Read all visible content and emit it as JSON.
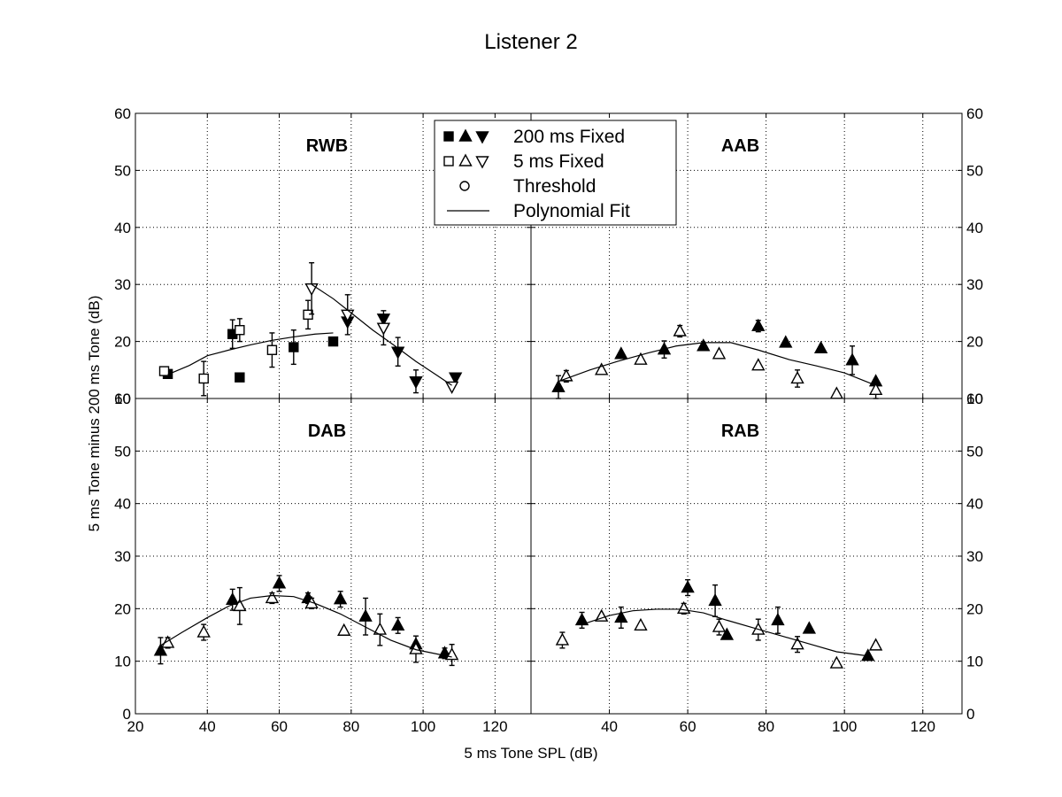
{
  "figure_title": "Listener 2",
  "x_axis_label": "5 ms Tone SPL (dB)",
  "y_axis_label": "5 ms Tone minus 200 ms Tone (dB)",
  "legend": {
    "items": [
      {
        "symbols": [
          "square-filled",
          "triangle-up-filled",
          "triangle-down-filled"
        ],
        "label": "200 ms Fixed"
      },
      {
        "symbols": [
          "square-open",
          "triangle-up-open",
          "triangle-down-open"
        ],
        "label": "5 ms Fixed"
      },
      {
        "symbols": [
          "circle-open"
        ],
        "label": "Threshold"
      },
      {
        "symbols": [
          "line"
        ],
        "label": "Polynomial  Fit"
      }
    ]
  },
  "chart_data": [
    {
      "type": "scatter",
      "panel": "top-left",
      "title": "RWB",
      "xlim": [
        20,
        130
      ],
      "ylim": [
        10,
        60
      ],
      "xticks": [
        20,
        40,
        60,
        80,
        100,
        120
      ],
      "yticks": [
        10,
        20,
        30,
        40,
        50,
        60
      ],
      "grid": true,
      "series": [
        {
          "name": "200 ms Fixed",
          "marker": "square-filled",
          "x": [
            29,
            47,
            49,
            64,
            75
          ],
          "y": [
            14.3,
            21.3,
            13.7,
            19,
            20
          ],
          "err": [
            0,
            2.5,
            0,
            3,
            0
          ]
        },
        {
          "name": "200 ms Fixed",
          "marker": "triangle-down-filled",
          "x": [
            79,
            89,
            93,
            98,
            109
          ],
          "y": [
            23.5,
            24,
            18.2,
            13,
            13.7
          ],
          "err": [
            0,
            0,
            2.5,
            2,
            0
          ]
        },
        {
          "name": "5 ms Fixed",
          "marker": "square-open",
          "x": [
            28,
            39,
            49,
            58,
            68
          ],
          "y": [
            14.8,
            13.5,
            22,
            18.5,
            24.7
          ],
          "err": [
            0,
            3,
            2,
            3,
            2.5
          ]
        },
        {
          "name": "5 ms Fixed",
          "marker": "triangle-down-open",
          "x": [
            69,
            79,
            89,
            108
          ],
          "y": [
            29.3,
            24.7,
            22.4,
            12.1
          ],
          "err": [
            4.5,
            3.5,
            3,
            0
          ]
        },
        {
          "name": "Polynomial  Fit",
          "type": "line",
          "x": [
            29,
            35,
            40,
            46,
            52,
            58,
            64,
            70,
            75
          ],
          "y": [
            14.2,
            15.8,
            17.5,
            18.5,
            19.4,
            20.2,
            20.8,
            21.3,
            21.5
          ]
        },
        {
          "name": "Polynomial  Fit",
          "type": "line",
          "x": [
            69,
            75,
            80,
            86,
            92,
            98,
            104,
            108
          ],
          "y": [
            30,
            27.5,
            25,
            22,
            19.3,
            16.5,
            14,
            12.3
          ]
        }
      ]
    },
    {
      "type": "scatter",
      "panel": "top-right",
      "title": "AAB",
      "xlim": [
        20,
        130
      ],
      "ylim": [
        10,
        60
      ],
      "xticks": [
        40,
        60,
        80,
        100,
        120
      ],
      "yticks": [
        10,
        20,
        30,
        40,
        50,
        60
      ],
      "grid": true,
      "series": [
        {
          "name": "200 ms Fixed",
          "marker": "triangle-up-filled",
          "x": [
            27,
            43,
            54,
            64,
            78,
            85,
            94,
            102,
            108
          ],
          "y": [
            12,
            17.8,
            18.6,
            19.2,
            22.7,
            19.8,
            18.8,
            16.7,
            13
          ],
          "err": [
            2,
            0,
            1.5,
            0,
            1,
            0,
            0,
            2.5,
            0
          ]
        },
        {
          "name": "5 ms Fixed",
          "marker": "triangle-up-open",
          "x": [
            29,
            38,
            48,
            58,
            68,
            78,
            88,
            98,
            108
          ],
          "y": [
            13.9,
            15,
            16.8,
            21.8,
            17.8,
            15.8,
            13.5,
            10.8,
            11.5
          ],
          "err": [
            1,
            0,
            0,
            1,
            0,
            0,
            1.5,
            0,
            1.5
          ]
        },
        {
          "name": "Polynomial  Fit",
          "type": "line",
          "x": [
            27,
            35,
            42,
            50,
            57,
            64,
            71,
            78,
            86,
            93,
            100,
            108
          ],
          "y": [
            13,
            15,
            16.5,
            18,
            19.2,
            19.8,
            19.8,
            18.5,
            16.8,
            15.7,
            14.5,
            12.3
          ]
        }
      ]
    },
    {
      "type": "scatter",
      "panel": "bottom-left",
      "title": "DAB",
      "xlim": [
        20,
        130
      ],
      "ylim": [
        0,
        60
      ],
      "xticks": [
        20,
        40,
        60,
        80,
        100,
        120
      ],
      "yticks": [
        0,
        10,
        20,
        30,
        40,
        50,
        60
      ],
      "grid": true,
      "series": [
        {
          "name": "200 ms Fixed",
          "marker": "triangle-up-filled",
          "x": [
            27,
            47,
            60,
            68,
            77,
            84,
            93,
            98,
            106
          ],
          "y": [
            12,
            21.7,
            24.8,
            22,
            21.8,
            18.5,
            16.8,
            13.2,
            11.5
          ],
          "err": [
            2.5,
            2,
            1.5,
            1,
            1.5,
            3.5,
            1.5,
            0,
            1
          ]
        },
        {
          "name": "5 ms Fixed",
          "marker": "triangle-up-open",
          "x": [
            29,
            39,
            49,
            58,
            69,
            78,
            88,
            98,
            108
          ],
          "y": [
            13.5,
            15.5,
            20.5,
            22,
            21,
            15.8,
            16,
            12.3,
            11.2
          ],
          "err": [
            1,
            1.5,
            3.5,
            1,
            1,
            0,
            3,
            2.5,
            2
          ]
        },
        {
          "name": "Polynomial  Fit",
          "type": "line",
          "x": [
            27,
            33,
            40,
            46,
            52,
            58,
            64,
            70,
            77,
            84,
            91,
            98,
            108
          ],
          "y": [
            13,
            15.5,
            18.3,
            20.5,
            22,
            22.5,
            22.3,
            21,
            19,
            16.5,
            14,
            12.2,
            10.8
          ]
        }
      ]
    },
    {
      "type": "scatter",
      "panel": "bottom-right",
      "title": "RAB",
      "xlim": [
        20,
        130
      ],
      "ylim": [
        0,
        60
      ],
      "xticks": [
        40,
        60,
        80,
        100,
        120
      ],
      "yticks": [
        0,
        10,
        20,
        30,
        40,
        50,
        60
      ],
      "grid": true,
      "series": [
        {
          "name": "200 ms Fixed",
          "marker": "triangle-up-filled",
          "x": [
            33,
            43,
            60,
            67,
            70,
            83,
            91,
            106
          ],
          "y": [
            17.8,
            18.3,
            24,
            21.5,
            15,
            17.8,
            16.2,
            11
          ],
          "err": [
            1.5,
            2,
            1.5,
            3,
            0,
            2.5,
            0,
            0
          ]
        },
        {
          "name": "5 ms Fixed",
          "marker": "triangle-up-open",
          "x": [
            28,
            38,
            48,
            59,
            68,
            78,
            88,
            98,
            108
          ],
          "y": [
            14,
            18.5,
            16.8,
            20,
            16.5,
            16,
            13.2,
            9.6,
            13
          ],
          "err": [
            1.5,
            0,
            0,
            1,
            1.5,
            2,
            1.5,
            0,
            0
          ]
        },
        {
          "name": "Polynomial  Fit",
          "type": "line",
          "x": [
            33,
            40,
            46,
            52,
            58,
            64,
            70,
            77,
            84,
            91,
            98,
            106
          ],
          "y": [
            17,
            18.7,
            19.6,
            19.9,
            19.9,
            19.2,
            17.8,
            16.3,
            14.8,
            13.3,
            11.8,
            11
          ]
        }
      ]
    }
  ]
}
